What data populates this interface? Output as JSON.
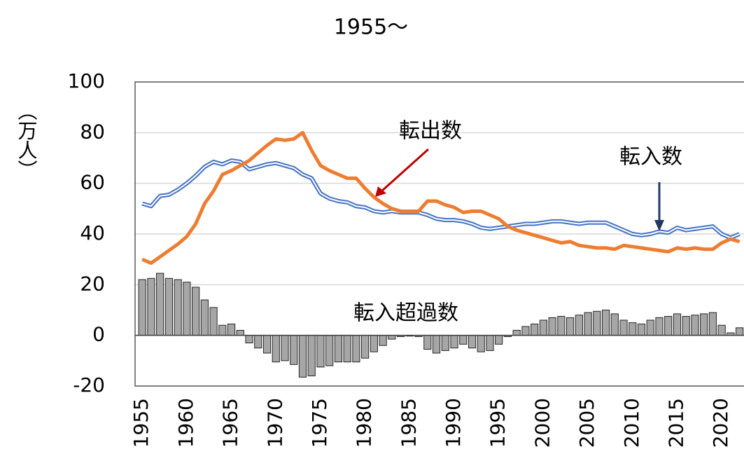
{
  "chart_data": {
    "type": "line",
    "title": "1955～",
    "y_label": "（万人）",
    "x": [
      1955,
      1956,
      1957,
      1958,
      1959,
      1960,
      1961,
      1962,
      1963,
      1964,
      1965,
      1966,
      1967,
      1968,
      1969,
      1970,
      1971,
      1972,
      1973,
      1974,
      1975,
      1976,
      1977,
      1978,
      1979,
      1980,
      1981,
      1982,
      1983,
      1984,
      1985,
      1986,
      1987,
      1988,
      1989,
      1990,
      1991,
      1992,
      1993,
      1994,
      1995,
      1996,
      1997,
      1998,
      1999,
      2000,
      2001,
      2002,
      2003,
      2004,
      2005,
      2006,
      2007,
      2008,
      2009,
      2010,
      2011,
      2012,
      2013,
      2014,
      2015,
      2016,
      2017,
      2018,
      2019,
      2020,
      2021,
      2022
    ],
    "xlim": [
      1954.2,
      2022.5
    ],
    "xticks": [
      1955,
      1960,
      1965,
      1970,
      1975,
      1980,
      1985,
      1990,
      1995,
      2000,
      2005,
      2010,
      2015,
      2020
    ],
    "ylim": [
      -20,
      100
    ],
    "yticks": [
      -20,
      0,
      20,
      40,
      60,
      80,
      100
    ],
    "grid": true,
    "series": [
      {
        "name": "転入超過数",
        "type": "bar",
        "color": "#a6a6a6",
        "values": [
          22,
          22.5,
          24.5,
          22.5,
          22,
          21,
          19,
          14,
          11,
          4,
          4.5,
          2,
          -3,
          -5,
          -7,
          -10.5,
          -10,
          -11.5,
          -16.5,
          -16,
          -12.5,
          -12,
          -10.5,
          -10.5,
          -10.5,
          -9,
          -6.5,
          -4,
          -1.5,
          -0.5,
          -0.3,
          -0.5,
          -5.5,
          -7,
          -6,
          -5,
          -3.5,
          -5,
          -6.5,
          -6,
          -3.5,
          -0.5,
          2,
          3.5,
          4.5,
          6,
          7,
          7.5,
          7,
          8,
          9,
          9.5,
          10,
          8.5,
          6,
          5,
          4.5,
          6,
          7,
          7.5,
          8.5,
          7.5,
          8,
          8.5,
          9,
          4,
          1,
          3
        ]
      },
      {
        "name": "転入数",
        "type": "line",
        "color": "#4472c4",
        "values": [
          52,
          51,
          55,
          55.5,
          57.5,
          60,
          63,
          66.5,
          68.5,
          67.5,
          69,
          68.5,
          65.5,
          66.5,
          67.5,
          68,
          67,
          66,
          63.5,
          62,
          56,
          54,
          53,
          52.5,
          51,
          50.5,
          49,
          48.5,
          49,
          48.5,
          48.5,
          48.5,
          47.5,
          46,
          45.5,
          45.5,
          45,
          44,
          42.5,
          42,
          42.5,
          43,
          43.5,
          44,
          44,
          44.5,
          45,
          45,
          44.5,
          44,
          44.5,
          44.5,
          44.5,
          43,
          41.5,
          40,
          39.5,
          40,
          41,
          40.5,
          42.5,
          41.5,
          42,
          42.5,
          43,
          40,
          38.5,
          40
        ]
      },
      {
        "name": "転出数",
        "type": "line",
        "color": "#ed7d31",
        "values": [
          30,
          28.5,
          31,
          33.5,
          36,
          39,
          44,
          52,
          57,
          63.5,
          65,
          67,
          69,
          72,
          75,
          77.5,
          77,
          77.5,
          80,
          73,
          67,
          65,
          63.5,
          62,
          62,
          58,
          54.5,
          52,
          50,
          49,
          49,
          49,
          53,
          53,
          51.5,
          50.5,
          48.5,
          49,
          49,
          47.5,
          46,
          43,
          41.5,
          40.5,
          39.5,
          38.5,
          37.5,
          36.5,
          37,
          35.5,
          35,
          34.5,
          34.5,
          34,
          35.5,
          35,
          34.5,
          34,
          33.5,
          33,
          34.5,
          34,
          34.5,
          34,
          34,
          36.5,
          38,
          37
        ]
      }
    ]
  }
}
